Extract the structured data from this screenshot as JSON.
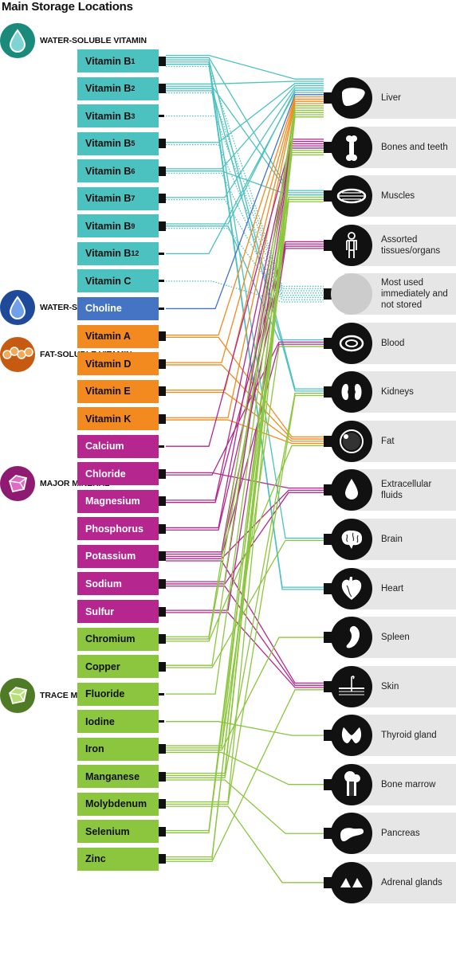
{
  "title": "Main Storage Locations",
  "colors": {
    "water_soluble_vitamin": "#4cc2c0",
    "water_soluble_nutrient": "#4674c4",
    "fat_soluble_vitamin": "#f28a1f",
    "major_mineral": "#b5268f",
    "trace_mineral": "#8cc63f"
  },
  "categories": [
    {
      "id": "water_soluble_vitamin",
      "label": "WATER-SOLUBLE VITAMIN",
      "icon": "droplet-icon"
    },
    {
      "id": "water_soluble_nutrient",
      "label": "WATER-SOLUBLE NUTRIENT",
      "icon": "droplet-icon"
    },
    {
      "id": "fat_soluble_vitamin",
      "label": "FAT-SOLUBLE VITAMIN",
      "icon": "fat-cells-icon"
    },
    {
      "id": "major_mineral",
      "label": "MAJOR MINERAL",
      "icon": "crystal-icon"
    },
    {
      "id": "trace_mineral",
      "label": "TRACE MINERAL",
      "icon": "crystal-icon"
    }
  ],
  "nutrients": [
    {
      "label": "Vitamin B",
      "sub": "1",
      "category": "water_soluble_vitamin"
    },
    {
      "label": "Vitamin B",
      "sub": "2",
      "category": "water_soluble_vitamin"
    },
    {
      "label": "Vitamin B",
      "sub": "3",
      "category": "water_soluble_vitamin"
    },
    {
      "label": "Vitamin B",
      "sub": "5",
      "category": "water_soluble_vitamin"
    },
    {
      "label": "Vitamin B",
      "sub": "6",
      "category": "water_soluble_vitamin"
    },
    {
      "label": "Vitamin B",
      "sub": "7",
      "category": "water_soluble_vitamin"
    },
    {
      "label": "Vitamin B",
      "sub": "9",
      "category": "water_soluble_vitamin"
    },
    {
      "label": "Vitamin B",
      "sub": "12",
      "category": "water_soluble_vitamin"
    },
    {
      "label": "Vitamin C",
      "sub": "",
      "category": "water_soluble_vitamin"
    },
    {
      "label": "Choline",
      "sub": "",
      "category": "water_soluble_nutrient"
    },
    {
      "label": "Vitamin A",
      "sub": "",
      "category": "fat_soluble_vitamin"
    },
    {
      "label": "Vitamin D",
      "sub": "",
      "category": "fat_soluble_vitamin"
    },
    {
      "label": "Vitamin E",
      "sub": "",
      "category": "fat_soluble_vitamin"
    },
    {
      "label": "Vitamin K",
      "sub": "",
      "category": "fat_soluble_vitamin"
    },
    {
      "label": "Calcium",
      "sub": "",
      "category": "major_mineral"
    },
    {
      "label": "Chloride",
      "sub": "",
      "category": "major_mineral"
    },
    {
      "label": "Magnesium",
      "sub": "",
      "category": "major_mineral"
    },
    {
      "label": "Phosphorus",
      "sub": "",
      "category": "major_mineral"
    },
    {
      "label": "Potassium",
      "sub": "",
      "category": "major_mineral"
    },
    {
      "label": "Sodium",
      "sub": "",
      "category": "major_mineral"
    },
    {
      "label": "Sulfur",
      "sub": "",
      "category": "major_mineral"
    },
    {
      "label": "Chromium",
      "sub": "",
      "category": "trace_mineral"
    },
    {
      "label": "Copper",
      "sub": "",
      "category": "trace_mineral"
    },
    {
      "label": "Fluoride",
      "sub": "",
      "category": "trace_mineral"
    },
    {
      "label": "Iodine",
      "sub": "",
      "category": "trace_mineral"
    },
    {
      "label": "Iron",
      "sub": "",
      "category": "trace_mineral"
    },
    {
      "label": "Manganese",
      "sub": "",
      "category": "trace_mineral"
    },
    {
      "label": "Molybdenum",
      "sub": "",
      "category": "trace_mineral"
    },
    {
      "label": "Selenium",
      "sub": "",
      "category": "trace_mineral"
    },
    {
      "label": "Zinc",
      "sub": "",
      "category": "trace_mineral"
    }
  ],
  "locations": [
    {
      "label": "Liver",
      "icon": "liver-icon"
    },
    {
      "label": "Bones and teeth",
      "icon": "bone-icon"
    },
    {
      "label": "Muscles",
      "icon": "muscle-icon"
    },
    {
      "label": "Assorted tissues/organs",
      "icon": "body-icon"
    },
    {
      "label": "Most used immediately and not stored",
      "icon": "empty-circle-icon"
    },
    {
      "label": "Blood",
      "icon": "blood-cell-icon"
    },
    {
      "label": "Kidneys",
      "icon": "kidney-icon"
    },
    {
      "label": "Fat",
      "icon": "fat-cell-icon"
    },
    {
      "label": "Extracellular fluids",
      "icon": "droplet-icon"
    },
    {
      "label": "Brain",
      "icon": "brain-icon"
    },
    {
      "label": "Heart",
      "icon": "heart-icon"
    },
    {
      "label": "Spleen",
      "icon": "spleen-icon"
    },
    {
      "label": "Skin",
      "icon": "skin-icon"
    },
    {
      "label": "Thyroid gland",
      "icon": "thyroid-icon"
    },
    {
      "label": "Bone marrow",
      "icon": "bone-marrow-icon"
    },
    {
      "label": "Pancreas",
      "icon": "pancreas-icon"
    },
    {
      "label": "Adrenal glands",
      "icon": "adrenal-icon"
    }
  ],
  "links": [
    {
      "from": 0,
      "to": 0,
      "style": "solid"
    },
    {
      "from": 0,
      "to": 2,
      "style": "solid"
    },
    {
      "from": 0,
      "to": 6,
      "style": "solid"
    },
    {
      "from": 0,
      "to": 9,
      "style": "solid"
    },
    {
      "from": 0,
      "to": 10,
      "style": "solid"
    },
    {
      "from": 0,
      "to": 4,
      "style": "dotted"
    },
    {
      "from": 1,
      "to": 0,
      "style": "solid"
    },
    {
      "from": 1,
      "to": 2,
      "style": "solid"
    },
    {
      "from": 1,
      "to": 6,
      "style": "solid"
    },
    {
      "from": 1,
      "to": 10,
      "style": "solid"
    },
    {
      "from": 1,
      "to": 4,
      "style": "dotted"
    },
    {
      "from": 2,
      "to": 4,
      "style": "dotted"
    },
    {
      "from": 3,
      "to": 0,
      "style": "solid"
    },
    {
      "from": 3,
      "to": 4,
      "style": "dotted"
    },
    {
      "from": 4,
      "to": 0,
      "style": "solid"
    },
    {
      "from": 4,
      "to": 2,
      "style": "solid"
    },
    {
      "from": 4,
      "to": 4,
      "style": "dotted"
    },
    {
      "from": 5,
      "to": 0,
      "style": "solid"
    },
    {
      "from": 5,
      "to": 4,
      "style": "dotted"
    },
    {
      "from": 6,
      "to": 0,
      "style": "solid"
    },
    {
      "from": 6,
      "to": 5,
      "style": "solid"
    },
    {
      "from": 6,
      "to": 4,
      "style": "dotted"
    },
    {
      "from": 7,
      "to": 0,
      "style": "solid"
    },
    {
      "from": 8,
      "to": 4,
      "style": "dotted"
    },
    {
      "from": 9,
      "to": 0,
      "style": "solid"
    },
    {
      "from": 10,
      "to": 0,
      "style": "solid"
    },
    {
      "from": 10,
      "to": 7,
      "style": "solid"
    },
    {
      "from": 11,
      "to": 0,
      "style": "solid"
    },
    {
      "from": 11,
      "to": 7,
      "style": "solid"
    },
    {
      "from": 12,
      "to": 0,
      "style": "solid"
    },
    {
      "from": 12,
      "to": 7,
      "style": "solid"
    },
    {
      "from": 13,
      "to": 0,
      "style": "solid"
    },
    {
      "from": 13,
      "to": 7,
      "style": "solid"
    },
    {
      "from": 14,
      "to": 1,
      "style": "solid"
    },
    {
      "from": 15,
      "to": 8,
      "style": "solid"
    },
    {
      "from": 15,
      "to": 5,
      "style": "solid"
    },
    {
      "from": 16,
      "to": 1,
      "style": "solid"
    },
    {
      "from": 16,
      "to": 3,
      "style": "solid"
    },
    {
      "from": 17,
      "to": 1,
      "style": "solid"
    },
    {
      "from": 17,
      "to": 3,
      "style": "solid"
    },
    {
      "from": 18,
      "to": 1,
      "style": "solid"
    },
    {
      "from": 18,
      "to": 3,
      "style": "solid"
    },
    {
      "from": 18,
      "to": 5,
      "style": "solid"
    },
    {
      "from": 18,
      "to": 8,
      "style": "solid"
    },
    {
      "from": 18,
      "to": 12,
      "style": "solid"
    },
    {
      "from": 19,
      "to": 1,
      "style": "solid"
    },
    {
      "from": 19,
      "to": 8,
      "style": "solid"
    },
    {
      "from": 19,
      "to": 12,
      "style": "solid"
    },
    {
      "from": 20,
      "to": 3,
      "style": "solid"
    },
    {
      "from": 20,
      "to": 12,
      "style": "solid"
    },
    {
      "from": 21,
      "to": 0,
      "style": "solid"
    },
    {
      "from": 21,
      "to": 2,
      "style": "solid"
    },
    {
      "from": 21,
      "to": 7,
      "style": "solid"
    },
    {
      "from": 22,
      "to": 0,
      "style": "solid"
    },
    {
      "from": 22,
      "to": 9,
      "style": "solid"
    },
    {
      "from": 23,
      "to": 1,
      "style": "solid"
    },
    {
      "from": 24,
      "to": 13,
      "style": "solid"
    },
    {
      "from": 25,
      "to": 0,
      "style": "solid"
    },
    {
      "from": 25,
      "to": 5,
      "style": "solid"
    },
    {
      "from": 25,
      "to": 11,
      "style": "solid"
    },
    {
      "from": 25,
      "to": 14,
      "style": "solid"
    },
    {
      "from": 26,
      "to": 0,
      "style": "solid"
    },
    {
      "from": 26,
      "to": 1,
      "style": "solid"
    },
    {
      "from": 26,
      "to": 6,
      "style": "solid"
    },
    {
      "from": 26,
      "to": 15,
      "style": "solid"
    },
    {
      "from": 27,
      "to": 0,
      "style": "solid"
    },
    {
      "from": 27,
      "to": 6,
      "style": "solid"
    },
    {
      "from": 27,
      "to": 16,
      "style": "solid"
    },
    {
      "from": 28,
      "to": 0,
      "style": "solid"
    },
    {
      "from": 28,
      "to": 2,
      "style": "solid"
    },
    {
      "from": 29,
      "to": 2,
      "style": "solid"
    },
    {
      "from": 29,
      "to": 1,
      "style": "solid"
    },
    {
      "from": 29,
      "to": 12,
      "style": "solid"
    }
  ]
}
